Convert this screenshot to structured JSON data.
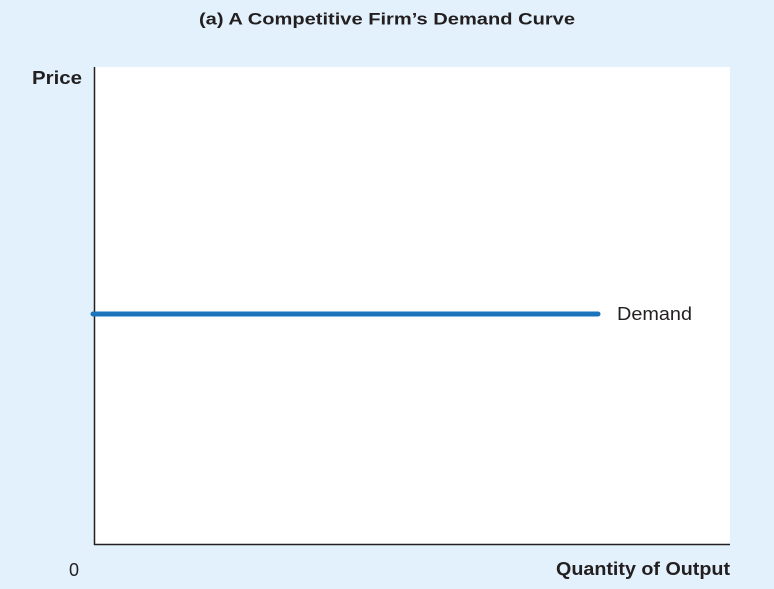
{
  "title": "(a) A Competitive Firm’s Demand Curve",
  "y_axis_label": "Price",
  "x_axis_label": "Quantity of Output",
  "origin_label": "0",
  "curve_label": "Demand"
}
